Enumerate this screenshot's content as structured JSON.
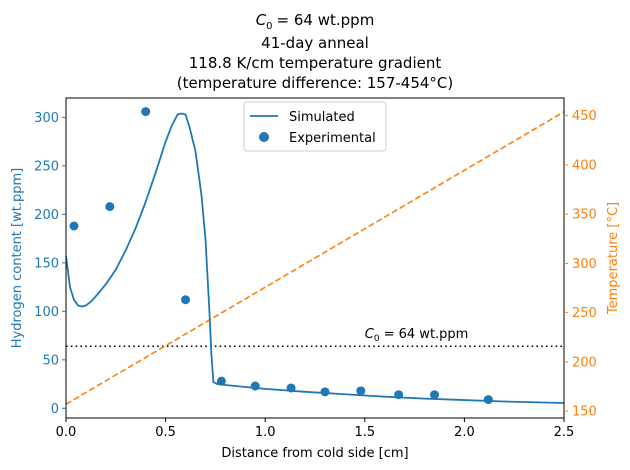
{
  "chart_data": {
    "type": "line",
    "title_lines": [
      "= 64 wt.ppm",
      "41-day anneal",
      "118.8 K/cm temperature gradient",
      "(temperature difference: 157-454°C)"
    ],
    "title_c0_symbol": "C",
    "title_c0_sub": "0",
    "xlabel": "Distance from cold side [cm]",
    "ylabel_left": "Hydrogen content [wt.ppm]",
    "ylabel_right": "Temperature [°C]",
    "xlim": [
      0.0,
      2.5
    ],
    "ylim_left": [
      -10,
      320
    ],
    "ylim_right": [
      143,
      468
    ],
    "xticks": [
      "0.0",
      "0.5",
      "1.0",
      "1.5",
      "2.0",
      "2.5"
    ],
    "yticks_left": [
      "0",
      "50",
      "100",
      "150",
      "200",
      "250",
      "300"
    ],
    "yticks_right": [
      "150",
      "200",
      "250",
      "300",
      "350",
      "400",
      "450"
    ],
    "legend_location": "top-center",
    "colors": {
      "simulated": "#1f77b4",
      "experimental": "#1f77b4",
      "temperature": "#ff7f0e",
      "c0_line": "#000000",
      "left_axis": "#1f77b4",
      "right_axis": "#ff7f0e"
    },
    "series": [
      {
        "name": "Simulated",
        "kind": "line",
        "axis": "left",
        "x": [
          0.0,
          0.02,
          0.04,
          0.06,
          0.08,
          0.1,
          0.13,
          0.16,
          0.2,
          0.25,
          0.3,
          0.35,
          0.4,
          0.45,
          0.5,
          0.53,
          0.56,
          0.58,
          0.6,
          0.62,
          0.65,
          0.68,
          0.7,
          0.72,
          0.73,
          0.74,
          0.76,
          0.8,
          0.9,
          1.0,
          1.2,
          1.4,
          1.6,
          1.8,
          2.0,
          2.2,
          2.5
        ],
        "y": [
          157,
          125,
          112,
          106,
          105,
          106,
          111,
          118,
          128,
          143,
          163,
          186,
          213,
          243,
          275,
          291,
          303,
          304,
          303,
          290,
          265,
          220,
          175,
          100,
          55,
          27,
          25,
          24,
          22,
          20,
          17,
          14.5,
          12,
          10,
          8.5,
          7,
          5.5
        ]
      },
      {
        "name": "Experimental",
        "kind": "scatter",
        "axis": "left",
        "x": [
          0.04,
          0.22,
          0.4,
          0.6,
          0.78,
          0.95,
          1.13,
          1.3,
          1.48,
          1.67,
          1.85,
          2.12
        ],
        "y": [
          188,
          208,
          306,
          112,
          28,
          23,
          21,
          17,
          18,
          14,
          14,
          9
        ]
      },
      {
        "kind": "line",
        "axis": "right",
        "style": "dashed",
        "x": [
          0.0,
          2.5
        ],
        "y": [
          157,
          454
        ]
      }
    ],
    "reference_line": {
      "axis": "left",
      "y": 64,
      "style": "dotted",
      "label_symbol": "C",
      "label_sub": "0",
      "label_rest": "= 64 wt.ppm",
      "label_x": 1.5
    }
  }
}
